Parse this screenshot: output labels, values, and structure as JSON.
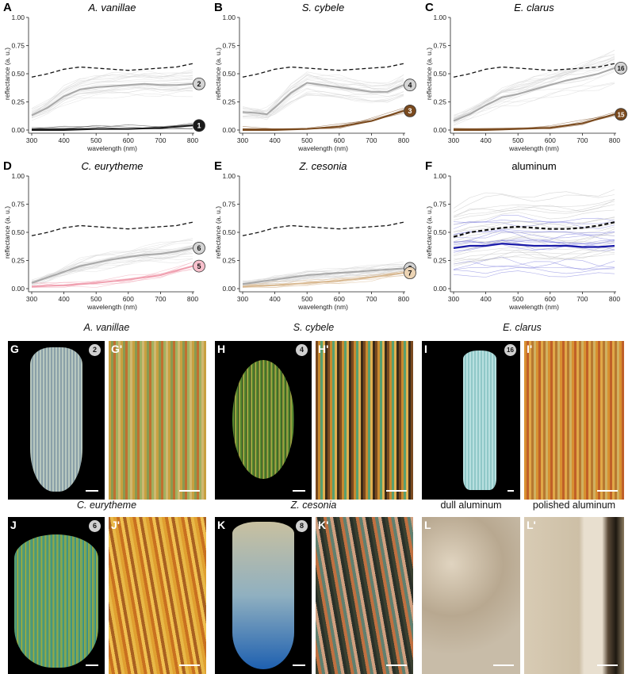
{
  "axis": {
    "xlabel": "wavelength (nm)",
    "ylabel": "reflectance (a. u.)",
    "xticks": [
      "300",
      "400",
      "500",
      "600",
      "700",
      "800"
    ],
    "yticks": [
      "0.00",
      "0.25",
      "0.50",
      "0.75",
      "1.00"
    ]
  },
  "chart_data": [
    {
      "panel": "A",
      "type": "line",
      "title": "A. vanillae",
      "xlim": [
        300,
        800
      ],
      "ylim": [
        0,
        1
      ],
      "series": [
        {
          "label": "2",
          "color": "#a8a8a8",
          "x": [
            300,
            350,
            400,
            450,
            500,
            550,
            600,
            650,
            700,
            750,
            800
          ],
          "y": [
            0.13,
            0.2,
            0.3,
            0.36,
            0.38,
            0.39,
            0.4,
            0.41,
            0.4,
            0.4,
            0.41
          ]
        },
        {
          "label": "1",
          "color": "#1a1a1a",
          "x": [
            300,
            400,
            500,
            600,
            700,
            800
          ],
          "y": [
            0.0,
            0.0,
            0.01,
            0.01,
            0.02,
            0.04
          ]
        }
      ],
      "reference": {
        "color": "#111",
        "x": [
          300,
          350,
          400,
          450,
          500,
          550,
          600,
          650,
          700,
          750,
          800
        ],
        "y": [
          0.47,
          0.5,
          0.54,
          0.56,
          0.55,
          0.54,
          0.53,
          0.54,
          0.55,
          0.56,
          0.59
        ]
      }
    },
    {
      "panel": "B",
      "type": "line",
      "title": "S. cybele",
      "xlim": [
        300,
        800
      ],
      "ylim": [
        0,
        1
      ],
      "series": [
        {
          "label": "4",
          "color": "#a8a8a8",
          "x": [
            300,
            350,
            375,
            400,
            450,
            500,
            550,
            600,
            650,
            700,
            750,
            800
          ],
          "y": [
            0.16,
            0.15,
            0.14,
            0.2,
            0.33,
            0.42,
            0.4,
            0.38,
            0.36,
            0.34,
            0.34,
            0.4
          ]
        },
        {
          "label": "3",
          "color": "#7a4a1e",
          "x": [
            300,
            400,
            500,
            600,
            700,
            800
          ],
          "y": [
            0.0,
            0.0,
            0.01,
            0.03,
            0.08,
            0.17
          ]
        }
      ],
      "reference": {
        "color": "#111",
        "x": [
          300,
          350,
          400,
          450,
          500,
          550,
          600,
          650,
          700,
          750,
          800
        ],
        "y": [
          0.47,
          0.5,
          0.54,
          0.56,
          0.55,
          0.54,
          0.53,
          0.54,
          0.55,
          0.56,
          0.59
        ]
      }
    },
    {
      "panel": "C",
      "type": "line",
      "title": "E. clarus",
      "xlim": [
        300,
        800
      ],
      "ylim": [
        0,
        1
      ],
      "series": [
        {
          "label": "16",
          "color": "#a8a8a8",
          "x": [
            300,
            350,
            400,
            450,
            500,
            550,
            600,
            650,
            700,
            750,
            800
          ],
          "y": [
            0.08,
            0.14,
            0.22,
            0.29,
            0.32,
            0.36,
            0.4,
            0.44,
            0.47,
            0.5,
            0.55
          ]
        },
        {
          "label": "15",
          "color": "#7a4a1e",
          "x": [
            300,
            400,
            500,
            600,
            700,
            800
          ],
          "y": [
            0.0,
            0.0,
            0.01,
            0.02,
            0.06,
            0.14
          ]
        }
      ],
      "reference": {
        "color": "#111",
        "x": [
          300,
          350,
          400,
          450,
          500,
          550,
          600,
          650,
          700,
          750,
          800
        ],
        "y": [
          0.47,
          0.5,
          0.54,
          0.56,
          0.55,
          0.54,
          0.53,
          0.54,
          0.55,
          0.56,
          0.59
        ]
      }
    },
    {
      "panel": "D",
      "type": "line",
      "title": "C. eurytheme",
      "xlim": [
        300,
        800
      ],
      "ylim": [
        0,
        1
      ],
      "series": [
        {
          "label": "6",
          "color": "#a8a8a8",
          "x": [
            300,
            350,
            400,
            450,
            500,
            550,
            600,
            650,
            700,
            750,
            800
          ],
          "y": [
            0.05,
            0.1,
            0.15,
            0.2,
            0.23,
            0.26,
            0.28,
            0.3,
            0.31,
            0.33,
            0.36
          ]
        },
        {
          "label": "5",
          "color": "#f0a0b0",
          "x": [
            300,
            400,
            500,
            600,
            700,
            800
          ],
          "y": [
            0.02,
            0.03,
            0.05,
            0.08,
            0.12,
            0.2
          ]
        }
      ],
      "reference": {
        "color": "#111",
        "x": [
          300,
          350,
          400,
          450,
          500,
          550,
          600,
          650,
          700,
          750,
          800
        ],
        "y": [
          0.47,
          0.5,
          0.54,
          0.56,
          0.55,
          0.54,
          0.53,
          0.54,
          0.55,
          0.56,
          0.59
        ]
      }
    },
    {
      "panel": "E",
      "type": "line",
      "title": "Z. cesonia",
      "xlim": [
        300,
        800
      ],
      "ylim": [
        0,
        1
      ],
      "series": [
        {
          "label": "8",
          "color": "#a8a8a8",
          "x": [
            300,
            350,
            400,
            450,
            500,
            550,
            600,
            650,
            700,
            750,
            800
          ],
          "y": [
            0.04,
            0.06,
            0.08,
            0.1,
            0.12,
            0.13,
            0.14,
            0.15,
            0.16,
            0.17,
            0.18
          ]
        },
        {
          "label": "7",
          "color": "#d8b890",
          "x": [
            300,
            400,
            500,
            600,
            700,
            800
          ],
          "y": [
            0.02,
            0.03,
            0.05,
            0.07,
            0.1,
            0.14
          ]
        }
      ],
      "reference": {
        "color": "#111",
        "x": [
          300,
          350,
          400,
          450,
          500,
          550,
          600,
          650,
          700,
          750,
          800
        ],
        "y": [
          0.47,
          0.5,
          0.54,
          0.56,
          0.55,
          0.54,
          0.53,
          0.54,
          0.55,
          0.56,
          0.59
        ]
      }
    },
    {
      "panel": "F",
      "type": "line",
      "title": "aluminum",
      "xlim": [
        300,
        800
      ],
      "ylim": [
        0,
        1
      ],
      "series": [
        {
          "label": "",
          "color": "#1a1aa8",
          "x": [
            300,
            350,
            400,
            450,
            500,
            550,
            600,
            650,
            700,
            750,
            800
          ],
          "y": [
            0.36,
            0.38,
            0.38,
            0.4,
            0.39,
            0.38,
            0.38,
            0.38,
            0.37,
            0.37,
            0.38
          ]
        },
        {
          "label": "",
          "color": "#111111",
          "x": [
            300,
            350,
            400,
            450,
            500,
            550,
            600,
            650,
            700,
            750,
            800
          ],
          "y": [
            0.46,
            0.5,
            0.52,
            0.54,
            0.55,
            0.54,
            0.53,
            0.53,
            0.54,
            0.56,
            0.59
          ]
        }
      ],
      "reference": null
    }
  ],
  "micrographs": [
    {
      "letter": "G",
      "title": "A. vanillae",
      "badge": "2",
      "kind": "scale-white"
    },
    {
      "letter": "G'",
      "title": "",
      "badge": "",
      "kind": "stripes-a"
    },
    {
      "letter": "H",
      "title": "S. cybele",
      "badge": "4",
      "kind": "scale-green"
    },
    {
      "letter": "H'",
      "title": "",
      "badge": "",
      "kind": "stripes-b"
    },
    {
      "letter": "I",
      "title": "E. clarus",
      "badge": "16",
      "kind": "scale-cyan"
    },
    {
      "letter": "I'",
      "title": "",
      "badge": "",
      "kind": "stripes-c"
    },
    {
      "letter": "J",
      "title": "C. eurytheme",
      "badge": "6",
      "kind": "scale-teal"
    },
    {
      "letter": "J'",
      "title": "",
      "badge": "",
      "kind": "stripes-d"
    },
    {
      "letter": "K",
      "title": "Z. cesonia",
      "badge": "8",
      "kind": "scale-blue"
    },
    {
      "letter": "K'",
      "title": "",
      "badge": "",
      "kind": "stripes-e"
    },
    {
      "letter": "L",
      "title": "dull aluminum",
      "badge": "",
      "kind": "al-dull"
    },
    {
      "letter": "L'",
      "title": "polished aluminum",
      "badge": "",
      "kind": "al-polished"
    }
  ]
}
